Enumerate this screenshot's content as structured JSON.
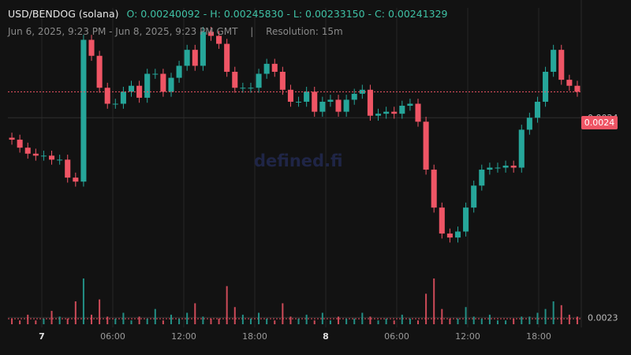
{
  "header": {
    "pair": "USD/BENDOG (solana)",
    "ohlc": "O: 0.00240092 - H: 0.00245830 - L: 0.00233150 - C: 0.00241329",
    "range": "Jun 6, 2025, 9:23 PM - Jun 8, 2025, 9:23 PM GMT",
    "separator": "|",
    "resolution": "Resolution: 15m"
  },
  "watermark": "defined.fi",
  "last_price_label": "0.0024",
  "colors": {
    "up": "#26a69a",
    "down": "#ef5565",
    "background": "#121212",
    "grid": "#262626"
  },
  "chart_data": {
    "type": "candlestick",
    "x_tick_labels": [
      "7",
      "06:00",
      "12:00",
      "18:00",
      "8",
      "06:00",
      "12:00",
      "18:00"
    ],
    "y_tick_labels": [
      "0.0024",
      "0.0023"
    ],
    "y_ticks": [
      0.0024,
      0.0023
    ],
    "ylim": [
      0.002295,
      0.002455
    ],
    "last_price": 0.002413,
    "grid": true,
    "legend": "none",
    "series": [
      {
        "o": 0.00239,
        "c": 0.002389
      },
      {
        "o": 0.002389,
        "c": 0.002385
      },
      {
        "o": 0.002385,
        "c": 0.002382
      },
      {
        "o": 0.002382,
        "c": 0.002381
      },
      {
        "o": 0.002381,
        "c": 0.002381
      },
      {
        "o": 0.002381,
        "c": 0.002379
      },
      {
        "o": 0.002379,
        "c": 0.002379
      },
      {
        "o": 0.002379,
        "c": 0.00237
      },
      {
        "o": 0.00237,
        "c": 0.002368
      },
      {
        "o": 0.002368,
        "c": 0.002439
      },
      {
        "o": 0.002439,
        "c": 0.002431
      },
      {
        "o": 0.002431,
        "c": 0.002415
      },
      {
        "o": 0.002415,
        "c": 0.002407
      },
      {
        "o": 0.002407,
        "c": 0.002407
      },
      {
        "o": 0.002407,
        "c": 0.002413
      },
      {
        "o": 0.002413,
        "c": 0.002416
      },
      {
        "o": 0.002416,
        "c": 0.00241
      },
      {
        "o": 0.00241,
        "c": 0.002422
      },
      {
        "o": 0.002422,
        "c": 0.002422
      },
      {
        "o": 0.002422,
        "c": 0.002413
      },
      {
        "o": 0.002413,
        "c": 0.00242
      },
      {
        "o": 0.00242,
        "c": 0.002426
      },
      {
        "o": 0.002426,
        "c": 0.002434
      },
      {
        "o": 0.002434,
        "c": 0.002426
      },
      {
        "o": 0.002426,
        "c": 0.002443
      },
      {
        "o": 0.002443,
        "c": 0.002441
      },
      {
        "o": 0.002441,
        "c": 0.002437
      },
      {
        "o": 0.002437,
        "c": 0.002423
      },
      {
        "o": 0.002423,
        "c": 0.002415
      },
      {
        "o": 0.002415,
        "c": 0.002415
      },
      {
        "o": 0.002415,
        "c": 0.002415
      },
      {
        "o": 0.002415,
        "c": 0.002422
      },
      {
        "o": 0.002422,
        "c": 0.002427
      },
      {
        "o": 0.002427,
        "c": 0.002423
      },
      {
        "o": 0.002423,
        "c": 0.002414
      },
      {
        "o": 0.002414,
        "c": 0.002408
      },
      {
        "o": 0.002408,
        "c": 0.002408
      },
      {
        "o": 0.002408,
        "c": 0.002413
      },
      {
        "o": 0.002413,
        "c": 0.002403
      },
      {
        "o": 0.002403,
        "c": 0.002408
      },
      {
        "o": 0.002408,
        "c": 0.002409
      },
      {
        "o": 0.002409,
        "c": 0.002403
      },
      {
        "o": 0.002403,
        "c": 0.002409
      },
      {
        "o": 0.002409,
        "c": 0.002412
      },
      {
        "o": 0.002412,
        "c": 0.002414
      },
      {
        "o": 0.002414,
        "c": 0.002401
      },
      {
        "o": 0.002401,
        "c": 0.002402
      },
      {
        "o": 0.002402,
        "c": 0.002403
      },
      {
        "o": 0.002403,
        "c": 0.002402
      },
      {
        "o": 0.002402,
        "c": 0.002406
      },
      {
        "o": 0.002406,
        "c": 0.002407
      },
      {
        "o": 0.002407,
        "c": 0.002398
      },
      {
        "o": 0.002398,
        "c": 0.002374
      },
      {
        "o": 0.002374,
        "c": 0.002355
      },
      {
        "o": 0.002355,
        "c": 0.002342
      },
      {
        "o": 0.002342,
        "c": 0.00234
      },
      {
        "o": 0.00234,
        "c": 0.002343
      },
      {
        "o": 0.002343,
        "c": 0.002355
      },
      {
        "o": 0.002355,
        "c": 0.002366
      },
      {
        "o": 0.002366,
        "c": 0.002374
      },
      {
        "o": 0.002374,
        "c": 0.002375
      },
      {
        "o": 0.002375,
        "c": 0.002375
      },
      {
        "o": 0.002375,
        "c": 0.002376
      },
      {
        "o": 0.002376,
        "c": 0.002375
      },
      {
        "o": 0.002375,
        "c": 0.002394
      },
      {
        "o": 0.002394,
        "c": 0.0024
      },
      {
        "o": 0.0024,
        "c": 0.002408
      },
      {
        "o": 0.002408,
        "c": 0.002423
      },
      {
        "o": 0.002423,
        "c": 0.002434
      },
      {
        "o": 0.002434,
        "c": 0.002419
      },
      {
        "o": 0.002419,
        "c": 0.002416
      },
      {
        "o": 0.002416,
        "c": 0.002413
      }
    ],
    "volume": [
      3,
      2,
      5,
      2,
      3,
      7,
      4,
      3,
      12,
      24,
      5,
      13,
      4,
      3,
      6,
      2,
      4,
      3,
      8,
      2,
      5,
      3,
      6,
      11,
      4,
      3,
      3,
      20,
      9,
      5,
      3,
      6,
      3,
      2,
      11,
      4,
      3,
      5,
      2,
      6,
      2,
      4,
      3,
      3,
      6,
      4,
      2,
      3,
      2,
      5,
      3,
      2,
      16,
      24,
      8,
      3,
      3,
      9,
      4,
      3,
      5,
      2,
      2,
      3,
      4,
      4,
      6,
      8,
      12,
      10,
      5,
      4
    ]
  }
}
